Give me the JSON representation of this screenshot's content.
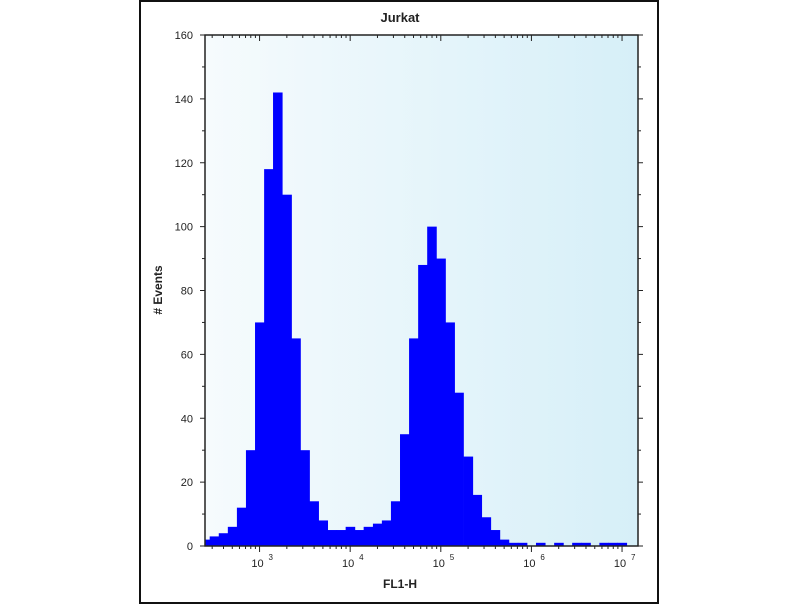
{
  "chart_data": {
    "type": "bar",
    "title": "Jurkat",
    "xlabel": "FL1-H",
    "ylabel": "# Events",
    "xscale": "log",
    "xlim": [
      250,
      15000000
    ],
    "ylim": [
      0,
      160
    ],
    "grid": false,
    "fill_color": "#0000ff",
    "background": "light blue gradient",
    "x_ticks": [
      {
        "value": 1000,
        "base": "10",
        "exp": "3"
      },
      {
        "value": 10000,
        "base": "10",
        "exp": "4"
      },
      {
        "value": 100000,
        "base": "10",
        "exp": "5"
      },
      {
        "value": 1000000,
        "base": "10",
        "exp": "6"
      },
      {
        "value": 10000000,
        "base": "10",
        "exp": "7"
      }
    ],
    "y_ticks": [
      "0",
      "20",
      "40",
      "60",
      "80",
      "100",
      "120",
      "140",
      "160"
    ],
    "x": [
      251,
      316,
      398,
      501,
      631,
      794,
      1000,
      1260,
      1580,
      2000,
      2510,
      3160,
      3980,
      5010,
      6310,
      7940,
      10000,
      12600,
      15800,
      20000,
      25100,
      31600,
      39800,
      50100,
      63100,
      79400,
      100000,
      126000,
      158000,
      200000,
      251000,
      316000,
      398000,
      501000,
      631000,
      794000,
      1000000,
      1260000,
      1580000,
      2000000,
      2510000,
      3160000,
      3980000,
      5010000,
      6310000,
      7940000,
      10000000,
      12600000
    ],
    "values": [
      2,
      3,
      4,
      6,
      12,
      30,
      70,
      118,
      142,
      110,
      65,
      30,
      14,
      8,
      5,
      5,
      6,
      5,
      6,
      7,
      8,
      14,
      35,
      65,
      88,
      100,
      90,
      70,
      48,
      28,
      16,
      9,
      5,
      2,
      1,
      1,
      0,
      1,
      0,
      1,
      0,
      1,
      1,
      0,
      1,
      1,
      1,
      0
    ]
  }
}
